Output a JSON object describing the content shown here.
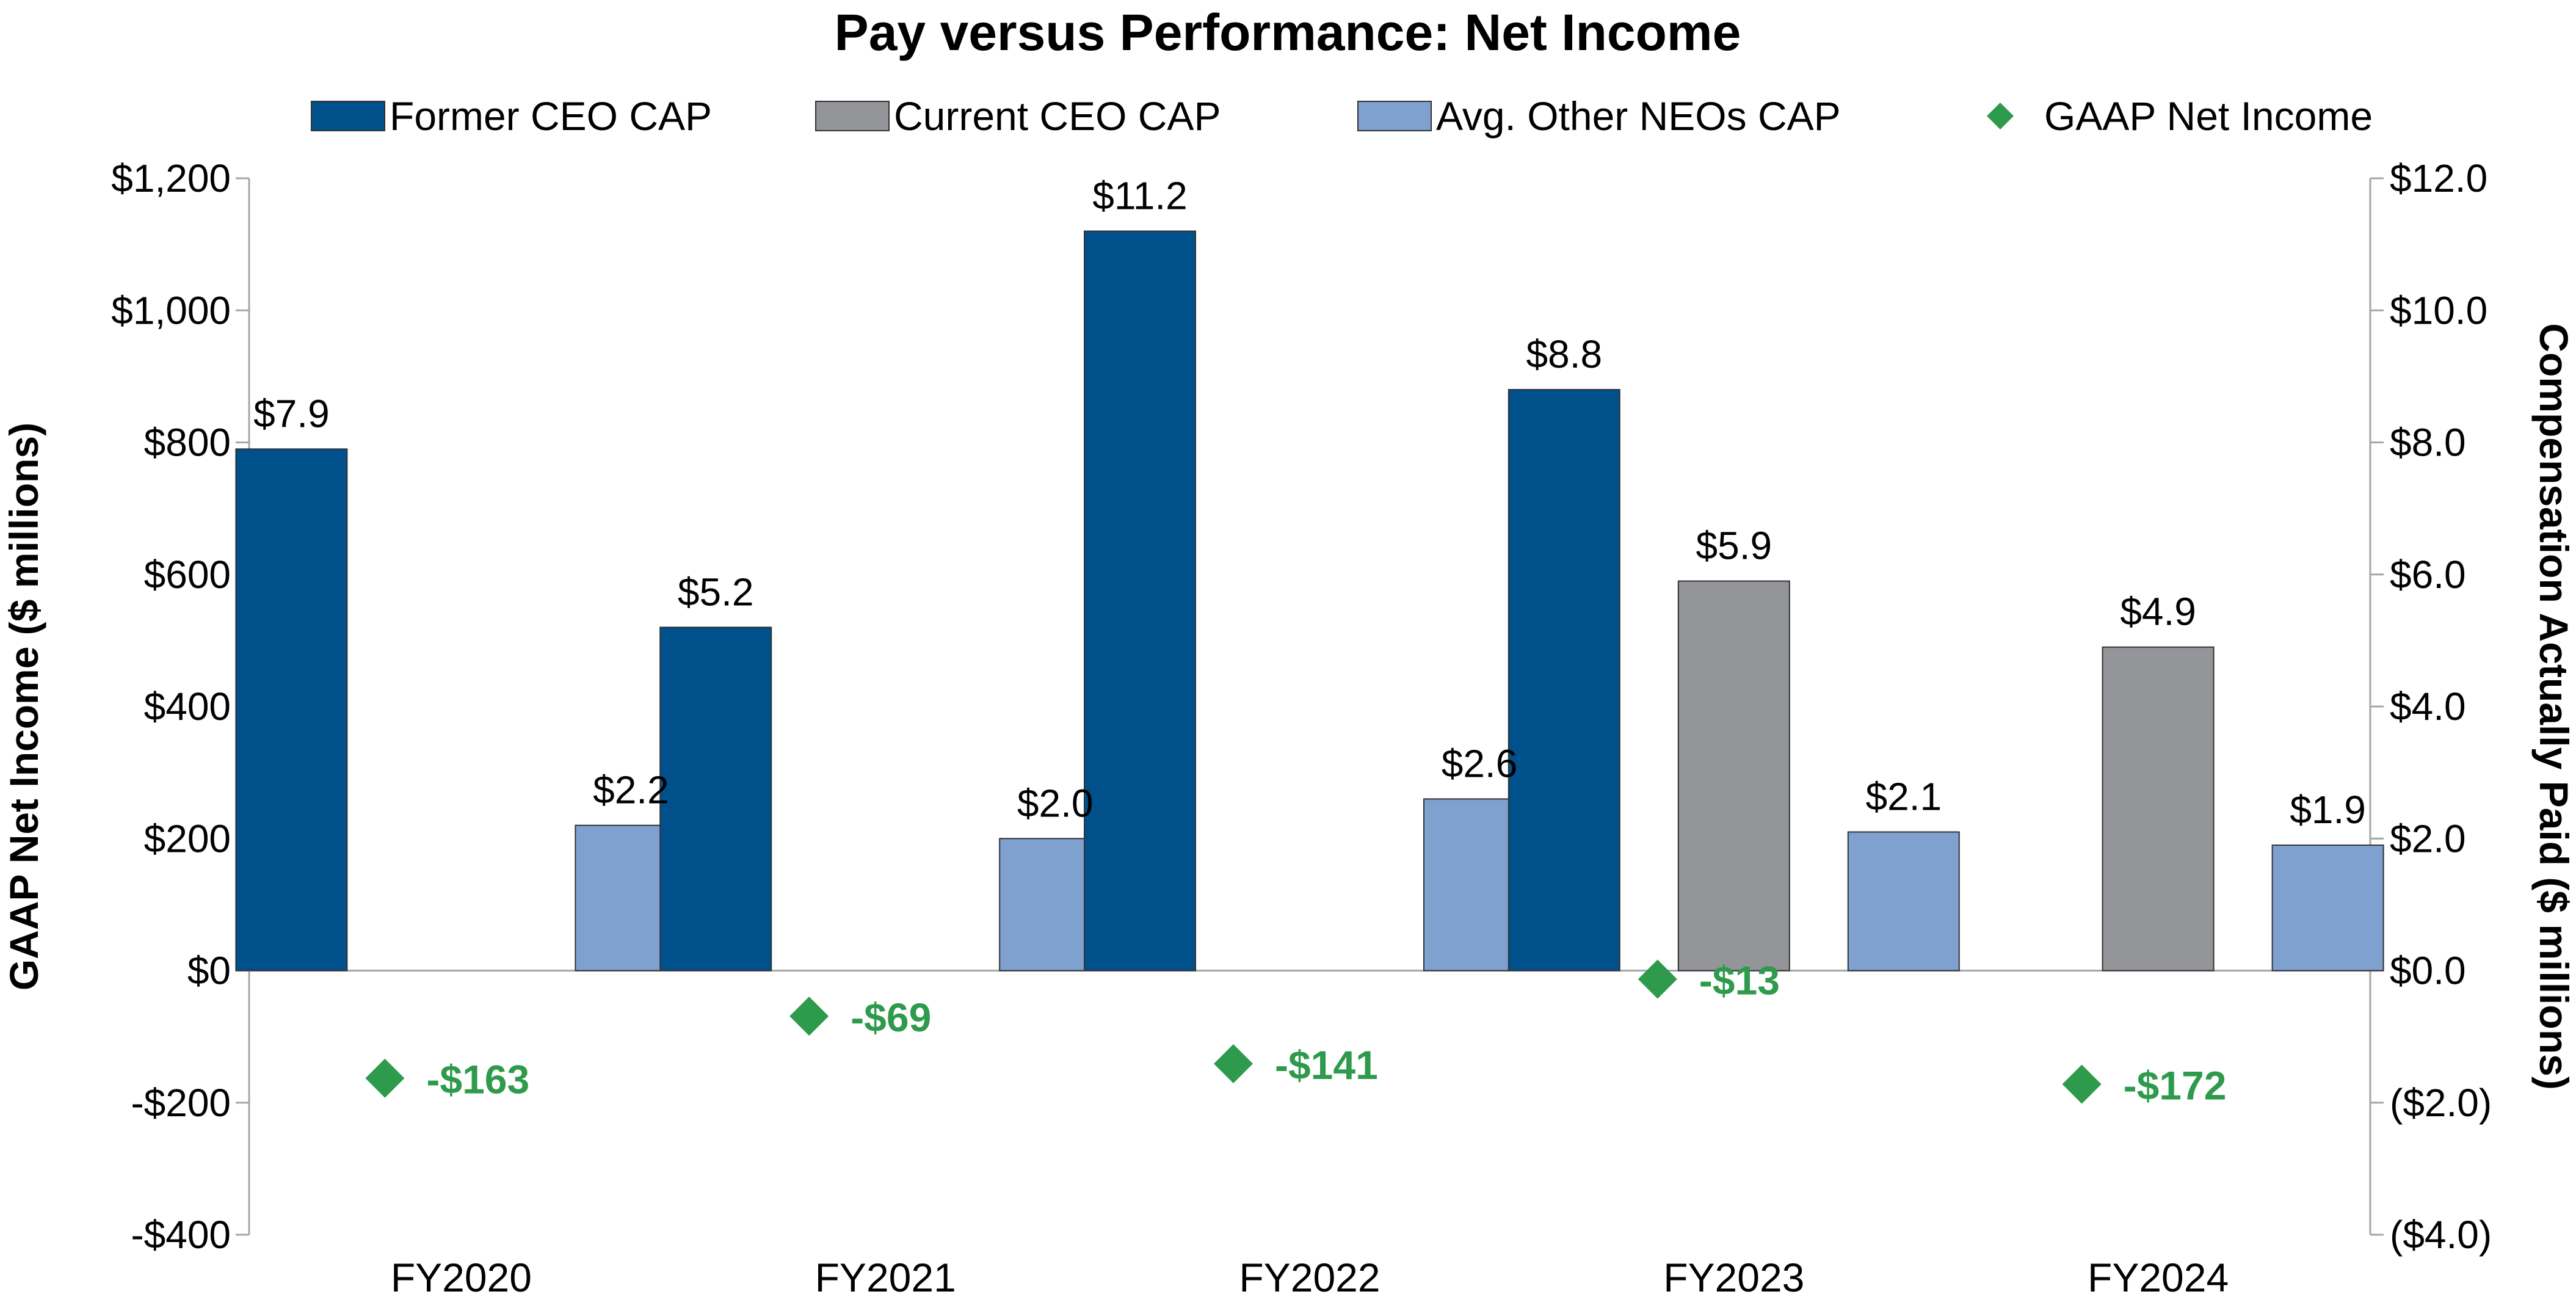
{
  "chart_data": {
    "type": "bar",
    "title": "Pay versus Performance: Net Income",
    "categories": [
      "FY2020",
      "FY2021",
      "FY2022",
      "FY2023",
      "FY2024"
    ],
    "series": [
      {
        "name": "Former CEO CAP",
        "axis": "right",
        "color": "#00508C",
        "values": [
          7.9,
          5.2,
          11.2,
          8.8,
          null
        ],
        "labels": [
          "$7.9",
          "$5.2",
          "$11.2",
          "$8.8",
          ""
        ]
      },
      {
        "name": "Current CEO CAP",
        "axis": "right",
        "color": "#939598",
        "values": [
          null,
          null,
          null,
          5.9,
          4.9
        ],
        "labels": [
          "",
          "",
          "",
          "$5.9",
          "$4.9"
        ]
      },
      {
        "name": "Avg. Other NEOs CAP",
        "axis": "right",
        "color": "#7EA1D0",
        "values": [
          2.2,
          2.0,
          2.6,
          2.1,
          1.9
        ],
        "labels": [
          "$2.2",
          "$2.0",
          "$2.6",
          "$2.1",
          "$1.9"
        ]
      }
    ],
    "net_income": {
      "name": "GAAP Net Income",
      "type": "scatter",
      "axis": "left",
      "color": "#2E9A4B",
      "values": [
        -163,
        -69,
        -141,
        -13,
        -172
      ],
      "labels": [
        "-$163",
        "-$69",
        "-$141",
        "-$13",
        "-$172"
      ]
    },
    "y_left": {
      "label": "GAAP Net Income ($ millions)",
      "range": [
        -400,
        1200
      ],
      "ticks": [
        -400,
        -200,
        0,
        200,
        400,
        600,
        800,
        1000,
        1200
      ],
      "tick_labels": [
        "-$400",
        "-$200",
        "$0",
        "$200",
        "$400",
        "$600",
        "$800",
        "$1,000",
        "$1,200"
      ]
    },
    "y_right": {
      "label": "Compensation Actually Paid ($ millions)",
      "range": [
        -4,
        12
      ],
      "ticks": [
        -4,
        -2,
        0,
        2,
        4,
        6,
        8,
        10,
        12
      ],
      "tick_labels": [
        "($4.0)",
        "($2.0)",
        "$0.0",
        "$2.0",
        "$4.0",
        "$6.0",
        "$8.0",
        "$10.0",
        "$12.0"
      ]
    },
    "legend": {
      "position": "top",
      "entries": [
        "Former CEO CAP",
        "Current CEO CAP",
        "Avg. Other NEOs CAP",
        "GAAP Net Income"
      ]
    },
    "grid": false
  }
}
